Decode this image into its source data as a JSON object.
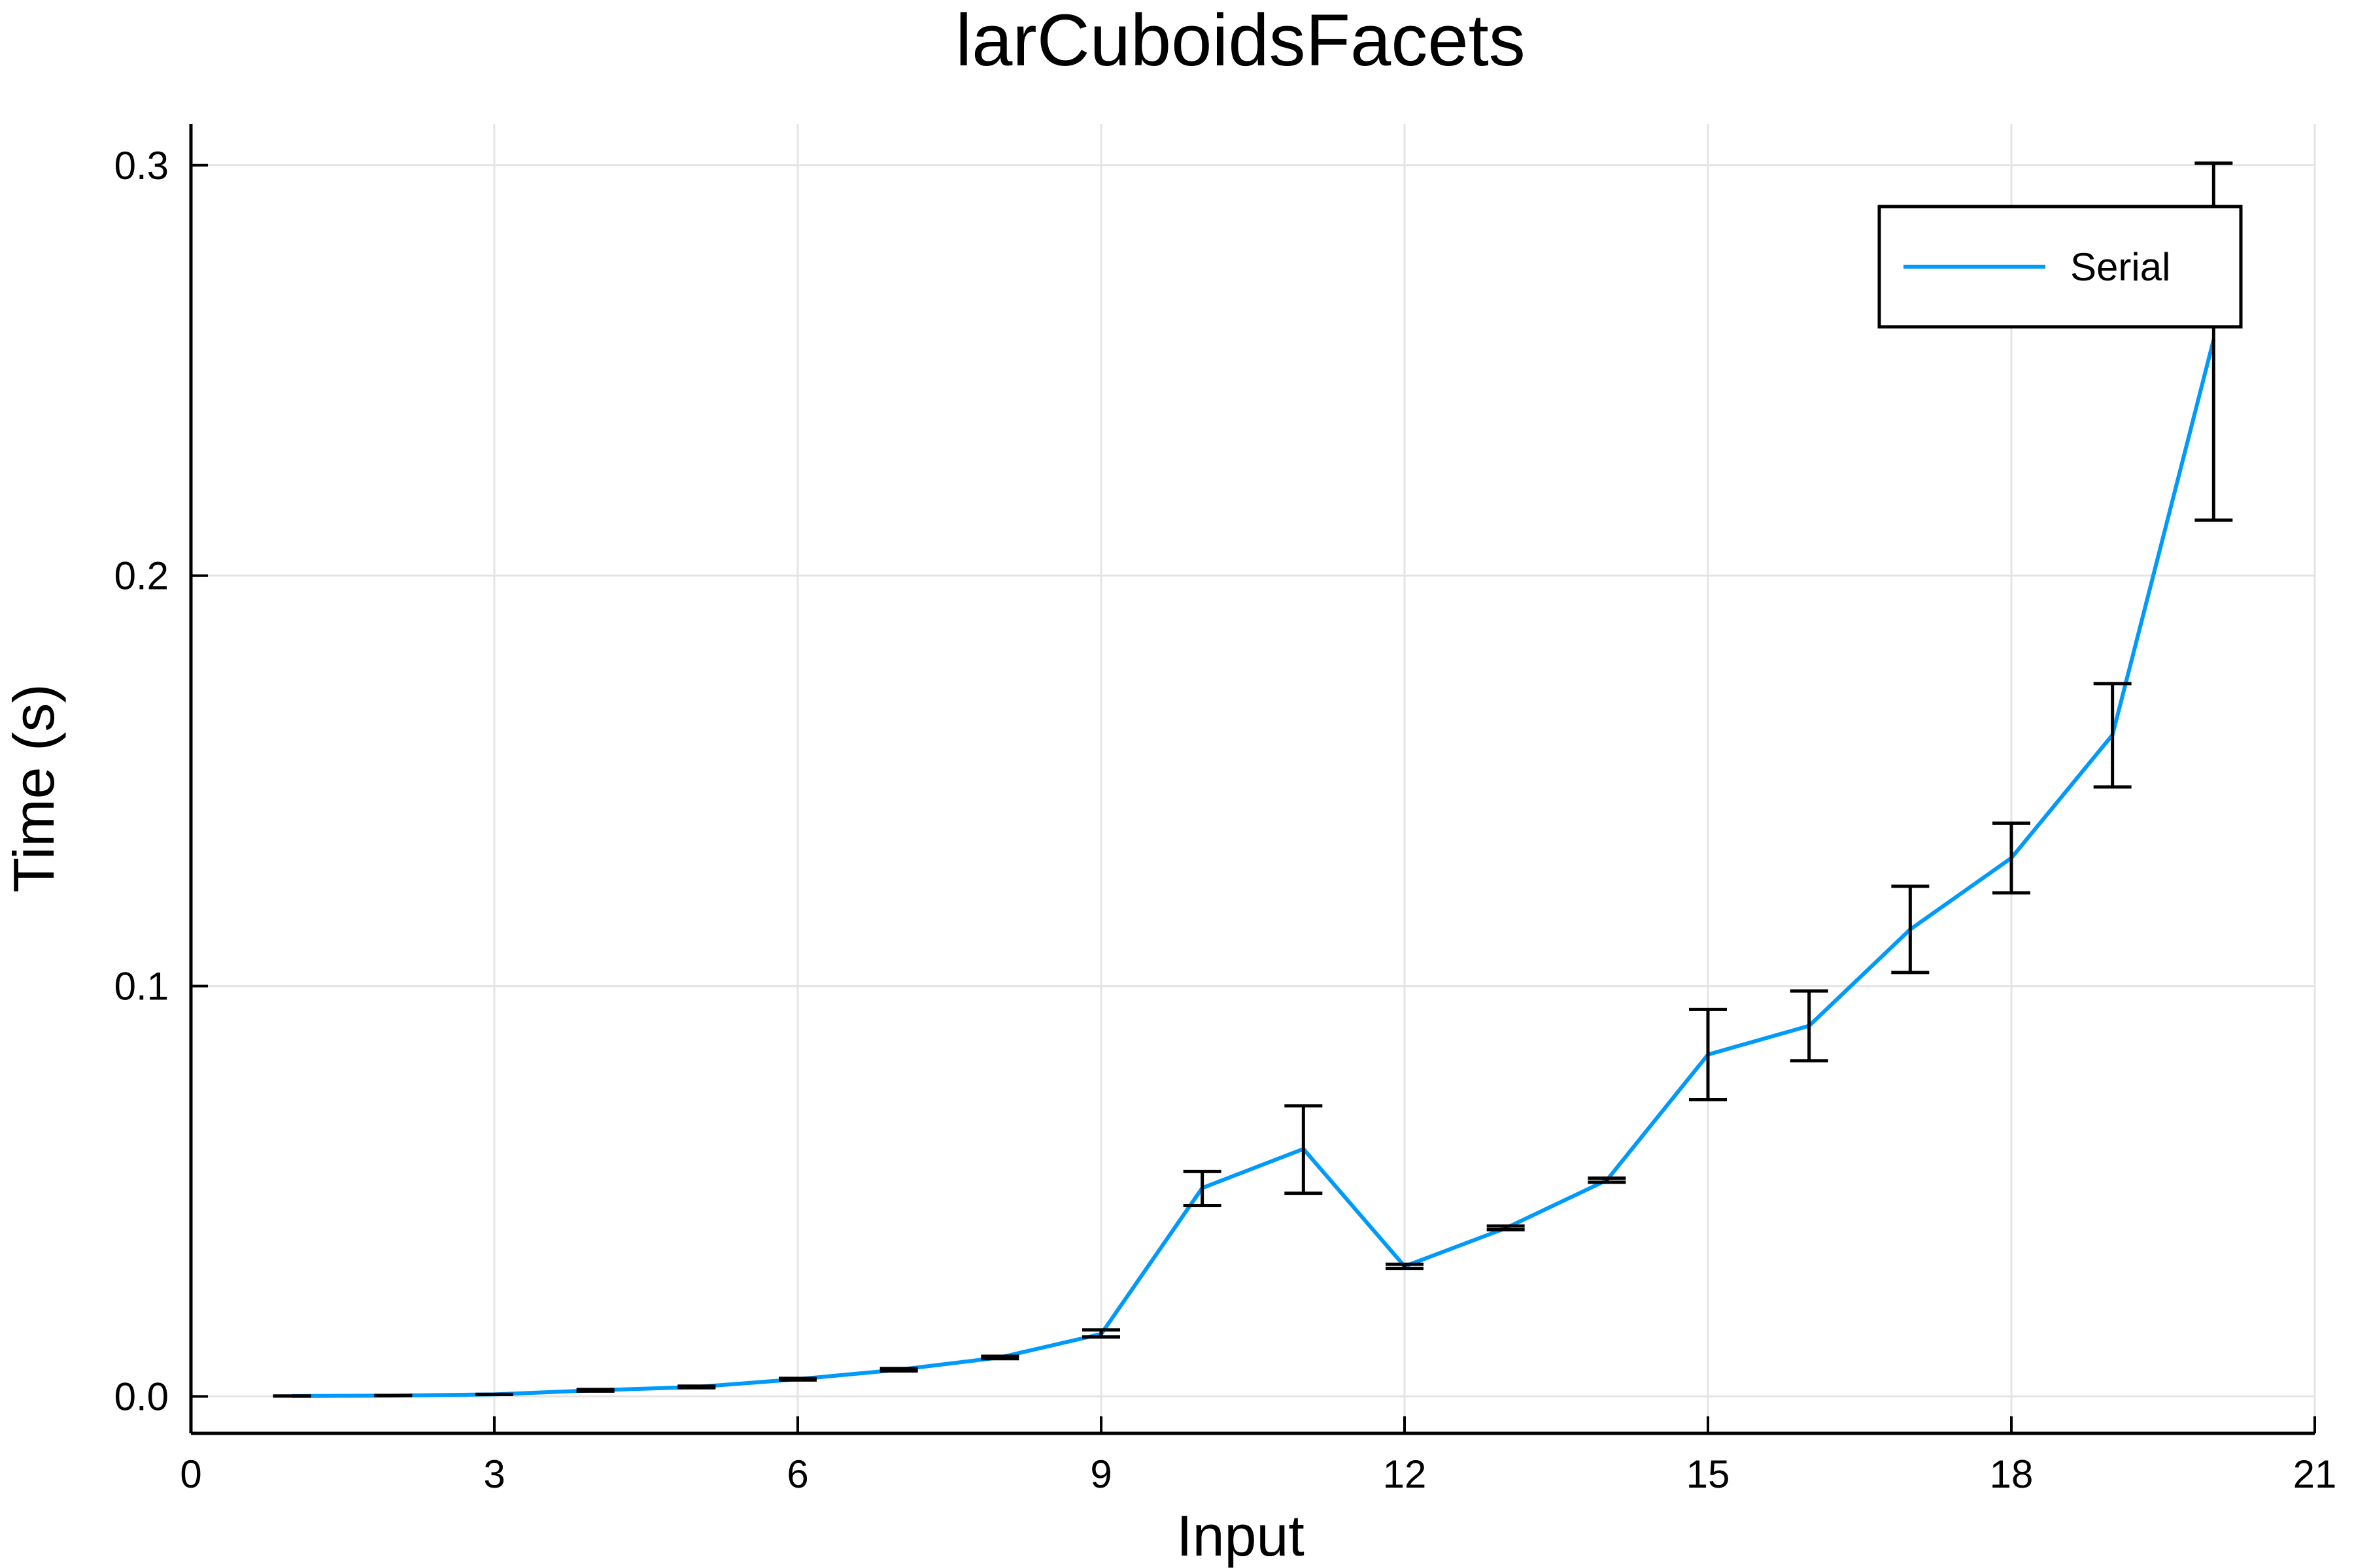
{
  "chart_data": {
    "type": "line",
    "title": "larCuboidsFacets",
    "xlabel": "Input",
    "ylabel": "Time (s)",
    "xlim": [
      0,
      21
    ],
    "ylim": [
      -0.009,
      0.31
    ],
    "xticks": [
      0,
      3,
      6,
      9,
      12,
      15,
      18,
      21
    ],
    "xtick_labels": [
      "0",
      "3",
      "6",
      "9",
      "12",
      "15",
      "18",
      "21"
    ],
    "yticks": [
      0.0,
      0.1,
      0.2,
      0.3
    ],
    "ytick_labels": [
      "0.0",
      "0.1",
      "0.2",
      "0.3"
    ],
    "grid": true,
    "legend_position": "top-right",
    "series": [
      {
        "name": "Serial",
        "color": "#009AFA",
        "x": [
          1,
          2,
          3,
          4,
          5,
          6,
          7,
          8,
          9,
          10,
          11,
          12,
          13,
          14,
          15,
          16,
          17,
          18,
          19,
          20
        ],
        "y": [
          0.0001,
          0.0002,
          0.0005,
          0.0015,
          0.0023,
          0.0042,
          0.0065,
          0.0095,
          0.0152,
          0.0508,
          0.0603,
          0.0317,
          0.041,
          0.0527,
          0.0833,
          0.0903,
          0.1138,
          0.1312,
          0.1612,
          0.2575
        ],
        "err_low": [
          0.0001,
          0.0002,
          0.0005,
          0.0013,
          0.0021,
          0.004,
          0.0062,
          0.0092,
          0.0145,
          0.0465,
          0.0495,
          0.0312,
          0.0406,
          0.0522,
          0.0723,
          0.0818,
          0.1033,
          0.1227,
          0.1485,
          0.2135
        ],
        "err_high": [
          0.0001,
          0.0002,
          0.0005,
          0.0017,
          0.0025,
          0.0044,
          0.0068,
          0.0098,
          0.0162,
          0.0548,
          0.0708,
          0.0322,
          0.0415,
          0.0532,
          0.0943,
          0.0988,
          0.1243,
          0.1397,
          0.1737,
          0.3005
        ],
        "error_bar_color": "#000000"
      }
    ]
  }
}
